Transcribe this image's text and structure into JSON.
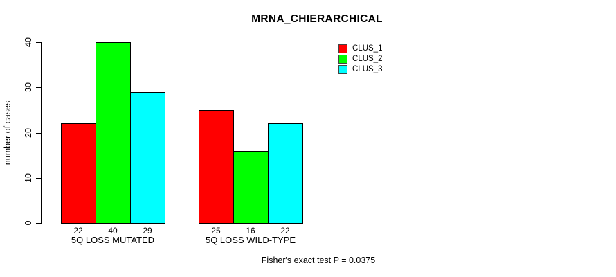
{
  "chart_data": {
    "type": "bar",
    "title": "MRNA_CHIERARCHICAL",
    "xlabel": "",
    "ylabel": "number of cases",
    "ylim": [
      0,
      40
    ],
    "yticks": [
      0,
      10,
      20,
      30,
      40
    ],
    "categories": [
      "5Q LOSS MUTATED",
      "5Q LOSS WILD-TYPE"
    ],
    "series": [
      {
        "name": "CLUS_1",
        "color": "#ff0000",
        "values": [
          22,
          25
        ]
      },
      {
        "name": "CLUS_2",
        "color": "#00ff00",
        "values": [
          40,
          16
        ]
      },
      {
        "name": "CLUS_3",
        "color": "#00ffff",
        "values": [
          29,
          22
        ]
      }
    ],
    "bar_value_labels": [
      [
        22,
        40,
        29
      ],
      [
        25,
        16,
        22
      ]
    ],
    "legend_position": "top-right",
    "grid": false,
    "background": "#ffffff",
    "axis_color": "#000000"
  },
  "footer": {
    "stat_text": "Fisher's exact test P = 0.0375"
  }
}
